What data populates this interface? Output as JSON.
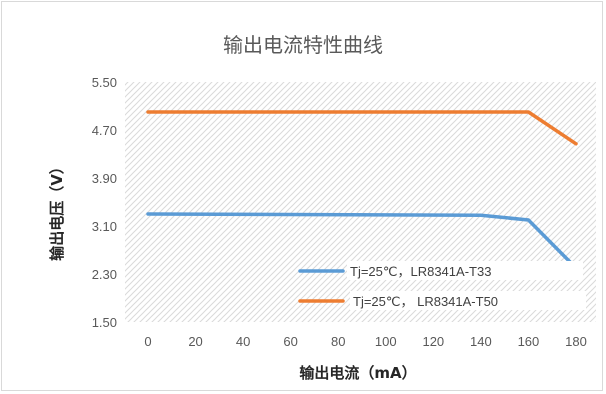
{
  "chart_data": {
    "type": "line",
    "title": "输出电流特性曲线",
    "xlabel": "输出电流（mA）",
    "ylabel": "输出电压（V）",
    "x": [
      0,
      20,
      40,
      60,
      80,
      100,
      120,
      140,
      160,
      180
    ],
    "x_tick_labels": [
      "0",
      "20",
      "40",
      "60",
      "80",
      "100",
      "120",
      "140",
      "160",
      "180"
    ],
    "y_tick_labels": [
      "1.50",
      "2.30",
      "3.10",
      "3.90",
      "4.70",
      "5.50"
    ],
    "ylim": [
      1.5,
      5.5
    ],
    "grid": "hatched plot area",
    "legend_position": "lower-right inside plot",
    "series": [
      {
        "name": "Tj=25℃，LR8341A-T33",
        "color": "#5b9bd5",
        "x": [
          0,
          140,
          160,
          180
        ],
        "values": [
          3.3,
          3.28,
          3.2,
          2.4
        ]
      },
      {
        "name": "Tj=25℃， LR8341A-T50",
        "color": "#ed7d31",
        "x": [
          0,
          160,
          180
        ],
        "values": [
          5.0,
          5.0,
          4.47
        ]
      }
    ]
  }
}
